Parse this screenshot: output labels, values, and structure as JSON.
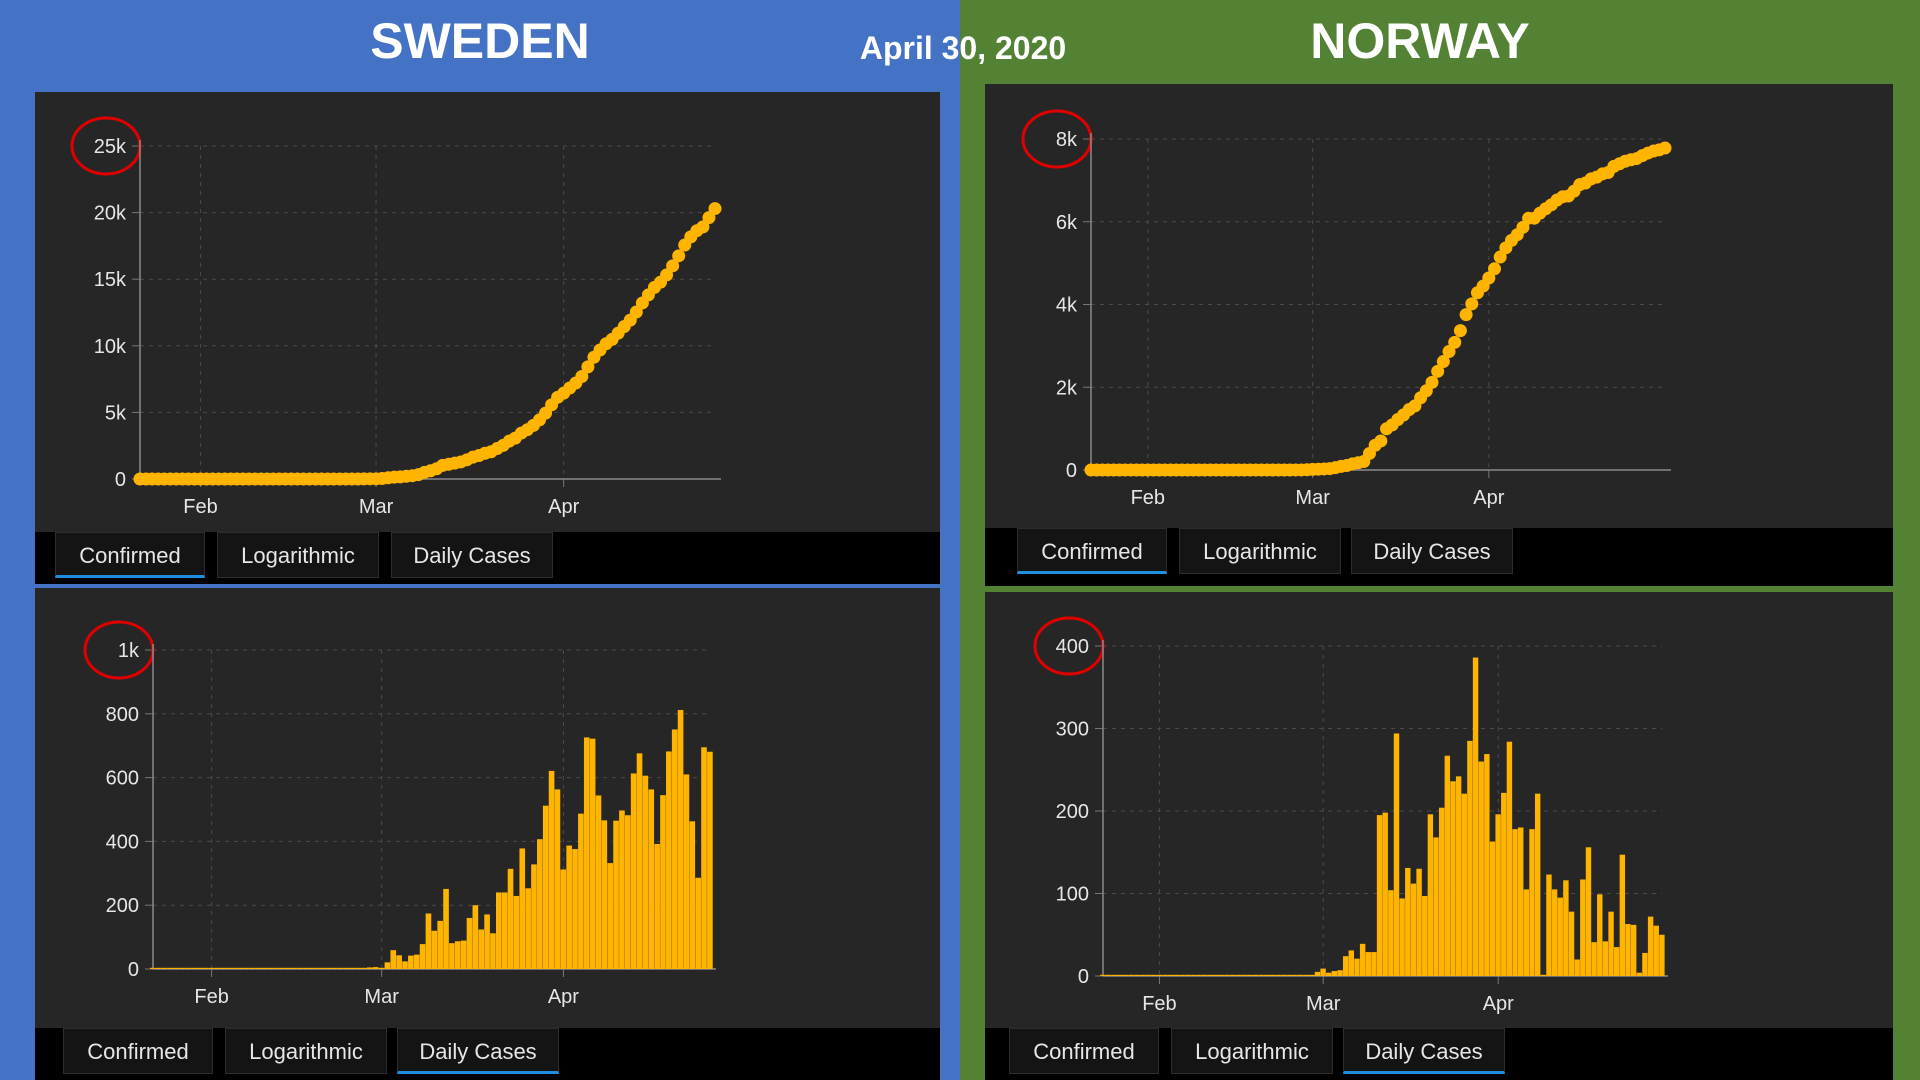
{
  "header": {
    "left_title": "SWEDEN",
    "right_title": "NORWAY",
    "date": "April 30, 2020"
  },
  "tabs": [
    "Confirmed",
    "Logarithmic",
    "Daily Cases"
  ],
  "colors": {
    "series": "#ffb400",
    "highlight_circle": "#e00000",
    "active_tab_underline": "#1f8fe0",
    "sweden_bg": "#4472c4",
    "norway_bg": "#548235"
  },
  "chart_data": [
    {
      "id": "sweden-confirmed",
      "country": "SWEDEN",
      "type": "scatter",
      "active_tab": 0,
      "x_start": "2020-01-22",
      "x_ticks": [
        "Feb",
        "Mar",
        "Apr"
      ],
      "x_tick_dates": [
        "2020-02-01",
        "2020-03-01",
        "2020-04-01"
      ],
      "ylim": [
        0,
        25000
      ],
      "y_ticks": [
        "0",
        "5k",
        "10k",
        "15k",
        "20k",
        "25k"
      ],
      "y_tick_values": [
        0,
        5000,
        10000,
        15000,
        20000,
        25000
      ],
      "highlighted_tick": "25k",
      "grid": true,
      "values": [
        1,
        1,
        1,
        1,
        1,
        1,
        1,
        1,
        1,
        1,
        1,
        1,
        1,
        1,
        1,
        1,
        1,
        1,
        1,
        1,
        1,
        1,
        1,
        1,
        1,
        1,
        1,
        1,
        1,
        1,
        1,
        1,
        1,
        1,
        1,
        1,
        2,
        7,
        13,
        14,
        35,
        94,
        137,
        161,
        203,
        248,
        326,
        500,
        620,
        771,
        1022,
        1103,
        1190,
        1279,
        1439,
        1639,
        1763,
        1934,
        2046,
        2286,
        2526,
        2840,
        3069,
        3447,
        3700,
        4028,
        4435,
        4947,
        5568,
        6131,
        6443,
        6830,
        7206,
        7693,
        8419,
        9141,
        9685,
        10151,
        10483,
        10948,
        11445,
        11927,
        12540,
        13216,
        13822,
        14385,
        14777,
        15322,
        16004,
        16755,
        17567,
        18177,
        18640,
        18926,
        19621,
        20302
      ]
    },
    {
      "id": "norway-confirmed",
      "country": "NORWAY",
      "type": "scatter",
      "active_tab": 0,
      "x_start": "2020-01-22",
      "x_ticks": [
        "Feb",
        "Mar",
        "Apr"
      ],
      "x_tick_dates": [
        "2020-02-01",
        "2020-03-01",
        "2020-04-01"
      ],
      "ylim": [
        0,
        8000
      ],
      "y_ticks": [
        "0",
        "2k",
        "4k",
        "6k",
        "8k"
      ],
      "y_tick_values": [
        0,
        2000,
        4000,
        6000,
        8000
      ],
      "highlighted_tick": "8k",
      "grid": true,
      "values": [
        0,
        0,
        0,
        0,
        0,
        0,
        0,
        0,
        0,
        0,
        0,
        0,
        0,
        0,
        0,
        0,
        0,
        0,
        0,
        0,
        0,
        0,
        0,
        0,
        0,
        0,
        0,
        0,
        0,
        0,
        0,
        0,
        0,
        0,
        0,
        0,
        1,
        1,
        6,
        15,
        19,
        25,
        32,
        56,
        87,
        108,
        147,
        176,
        205,
        400,
        598,
        702,
        996,
        1090,
        1221,
        1333,
        1463,
        1550,
        1746,
        1914,
        2118,
        2385,
        2621,
        2863,
        3084,
        3369,
        3755,
        4015,
        4284,
        4445,
        4641,
        4863,
        5147,
        5370,
        5550,
        5687,
        5865,
        6086,
        6086,
        6209,
        6314,
        6409,
        6525,
        6603,
        6623,
        6740,
        6896,
        6937,
        7036,
        7078,
        7156,
        7191,
        7338,
        7401,
        7463,
        7499,
        7527,
        7599,
        7660,
        7710,
        7738,
        7783
      ]
    },
    {
      "id": "sweden-daily",
      "country": "SWEDEN",
      "type": "bar",
      "active_tab": 2,
      "x_start": "2020-01-22",
      "x_ticks": [
        "Feb",
        "Mar",
        "Apr"
      ],
      "x_tick_dates": [
        "2020-02-01",
        "2020-03-01",
        "2020-04-01"
      ],
      "ylim": [
        0,
        1000
      ],
      "y_ticks": [
        "0",
        "200",
        "400",
        "600",
        "800",
        "1k"
      ],
      "y_tick_values": [
        0,
        200,
        400,
        600,
        800,
        1000
      ],
      "highlighted_tick": "1k",
      "grid": true,
      "values": [
        1,
        0,
        0,
        0,
        0,
        0,
        0,
        0,
        0,
        0,
        0,
        0,
        0,
        0,
        0,
        0,
        0,
        0,
        0,
        0,
        0,
        0,
        0,
        0,
        0,
        0,
        0,
        0,
        0,
        0,
        0,
        0,
        0,
        0,
        0,
        0,
        1,
        5,
        6,
        1,
        21,
        59,
        43,
        24,
        42,
        45,
        78,
        174,
        120,
        151,
        251,
        81,
        87,
        89,
        160,
        200,
        124,
        171,
        112,
        240,
        240,
        314,
        229,
        378,
        253,
        328,
        407,
        512,
        621,
        563,
        312,
        387,
        376,
        487,
        726,
        722,
        544,
        466,
        332,
        465,
        497,
        482,
        613,
        676,
        606,
        563,
        392,
        545,
        682,
        751,
        812,
        610,
        463,
        286,
        695,
        681
      ]
    },
    {
      "id": "norway-daily",
      "country": "NORWAY",
      "type": "bar",
      "active_tab": 2,
      "x_start": "2020-01-22",
      "x_ticks": [
        "Feb",
        "Mar",
        "Apr"
      ],
      "x_tick_dates": [
        "2020-02-01",
        "2020-03-01",
        "2020-04-01"
      ],
      "ylim": [
        0,
        400
      ],
      "y_ticks": [
        "0",
        "100",
        "200",
        "300",
        "400"
      ],
      "y_tick_values": [
        0,
        100,
        200,
        300,
        400
      ],
      "highlighted_tick": "400",
      "grid": true,
      "values": [
        0,
        0,
        0,
        0,
        0,
        0,
        0,
        0,
        0,
        0,
        0,
        0,
        0,
        0,
        0,
        0,
        0,
        0,
        0,
        0,
        0,
        0,
        0,
        0,
        0,
        0,
        0,
        0,
        0,
        0,
        0,
        0,
        0,
        0,
        0,
        0,
        1,
        0,
        5,
        9,
        4,
        6,
        7,
        24,
        31,
        21,
        39,
        29,
        29,
        195,
        198,
        104,
        294,
        94,
        131,
        112,
        130,
        97,
        196,
        168,
        204,
        267,
        236,
        242,
        221,
        285,
        386,
        260,
        269,
        163,
        196,
        222,
        284,
        178,
        180,
        105,
        178,
        221,
        0,
        123,
        105,
        95,
        116,
        78,
        20,
        117,
        156,
        41,
        99,
        42,
        78,
        35,
        147,
        63,
        62,
        4,
        28,
        72,
        61,
        50
      ]
    }
  ]
}
